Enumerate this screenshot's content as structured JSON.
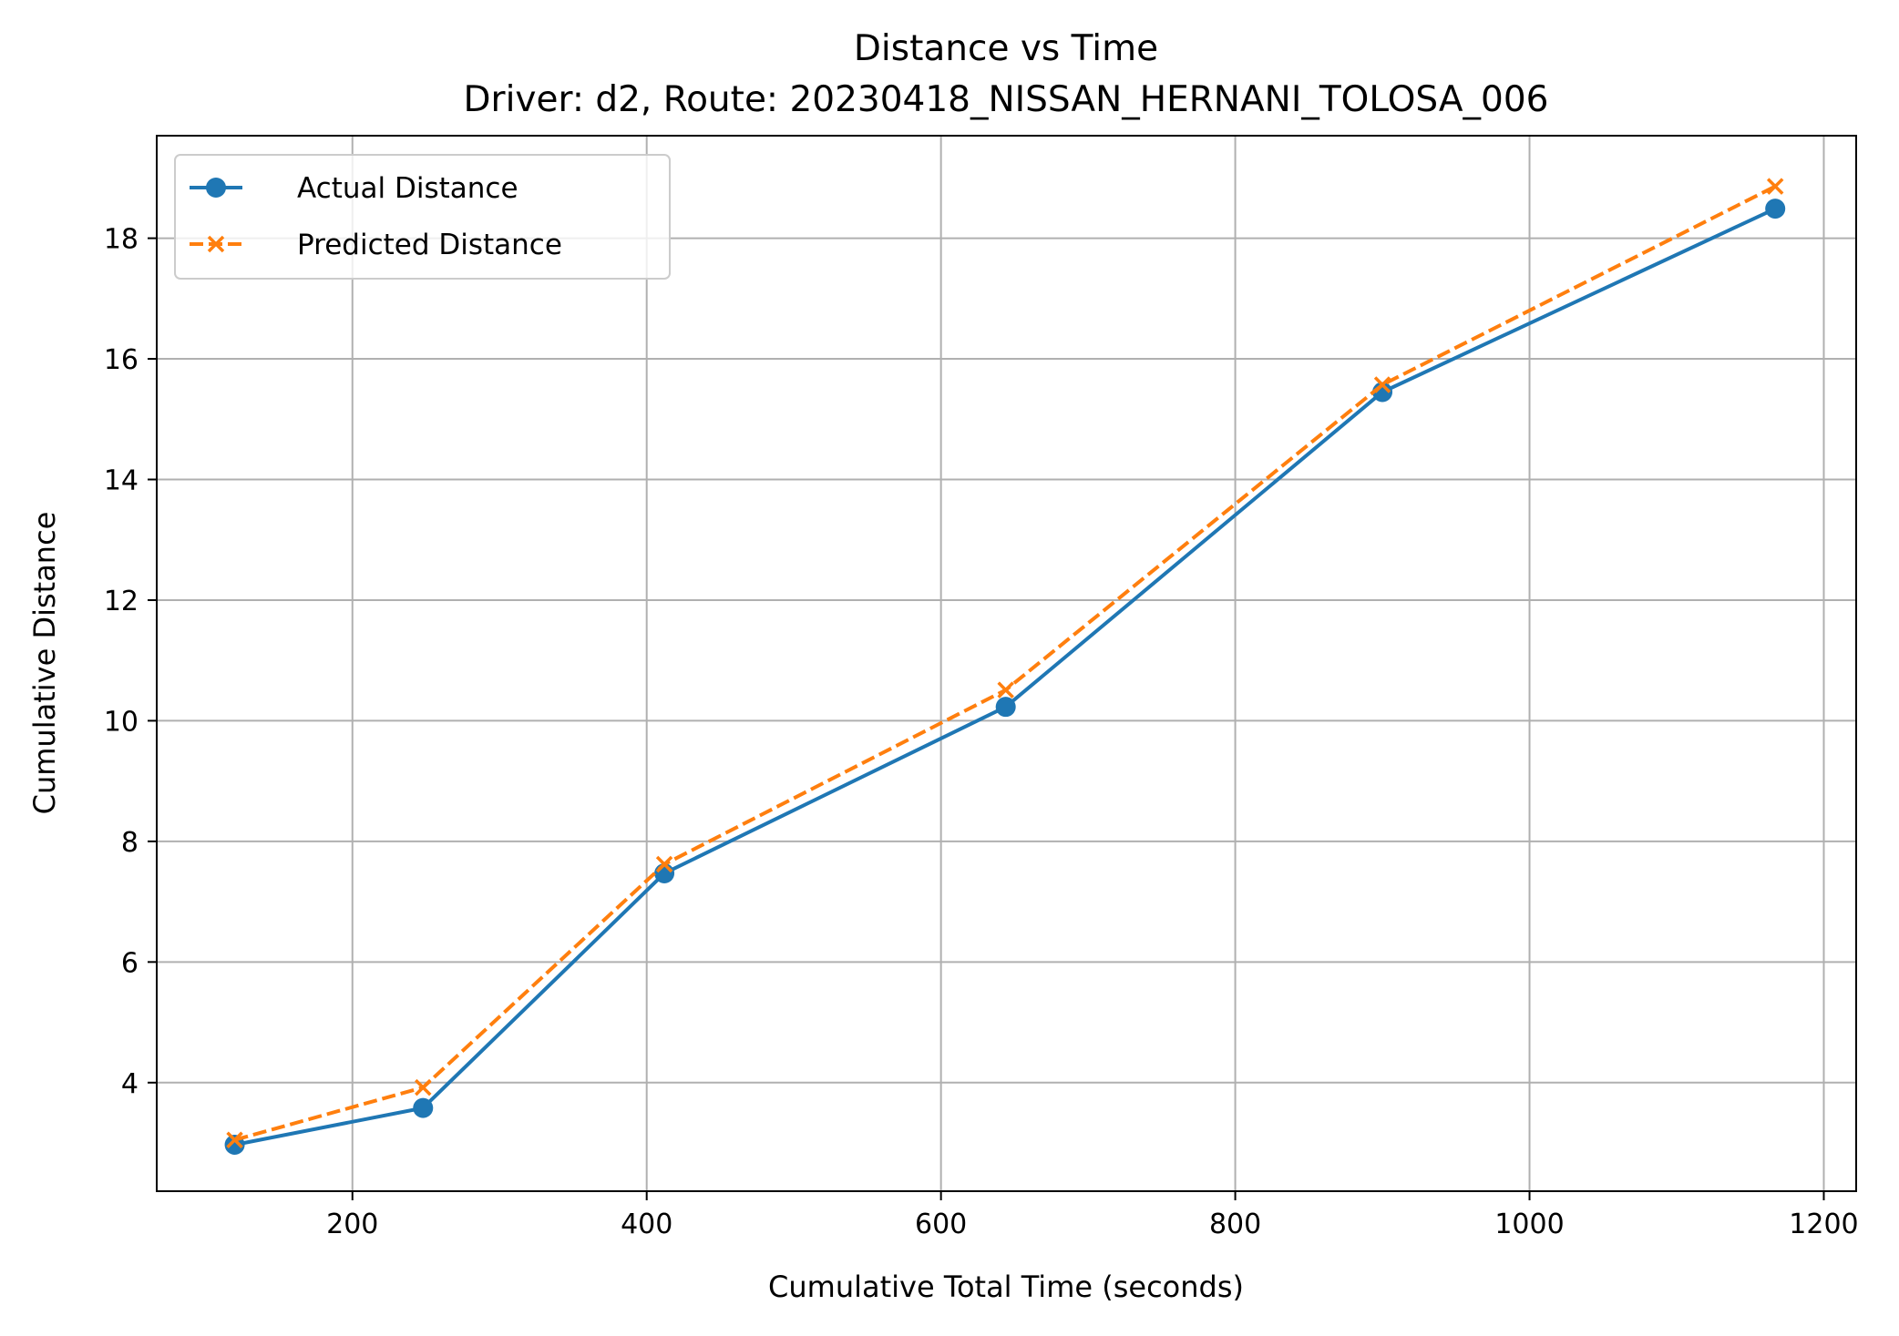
{
  "chart_data": {
    "type": "line",
    "title": "Distance vs Time",
    "subtitle": "Driver: d2, Route: 20230418_NISSAN_HERNANI_TOLOSA_006",
    "xlabel": "Cumulative Total Time (seconds)",
    "ylabel": "Cumulative Distance",
    "xlim": [
      67,
      1222
    ],
    "ylim": [
      2.2,
      19.7
    ],
    "xticks": [
      200,
      400,
      600,
      800,
      1000,
      1200
    ],
    "yticks": [
      4,
      6,
      8,
      10,
      12,
      14,
      16,
      18
    ],
    "grid": true,
    "legend_position": "upper left",
    "series": [
      {
        "name": "Actual Distance",
        "color": "#1f77b4",
        "line_style": "solid",
        "marker": "circle",
        "x": [
          120,
          248,
          412,
          644,
          900,
          1167
        ],
        "y": [
          2.97,
          3.58,
          7.47,
          10.23,
          15.45,
          18.49
        ]
      },
      {
        "name": "Predicted Distance",
        "color": "#ff7f0e",
        "line_style": "dashed",
        "marker": "x",
        "x": [
          120,
          248,
          412,
          644,
          900,
          1167
        ],
        "y": [
          3.05,
          3.92,
          7.62,
          10.51,
          15.57,
          18.86
        ]
      }
    ]
  }
}
